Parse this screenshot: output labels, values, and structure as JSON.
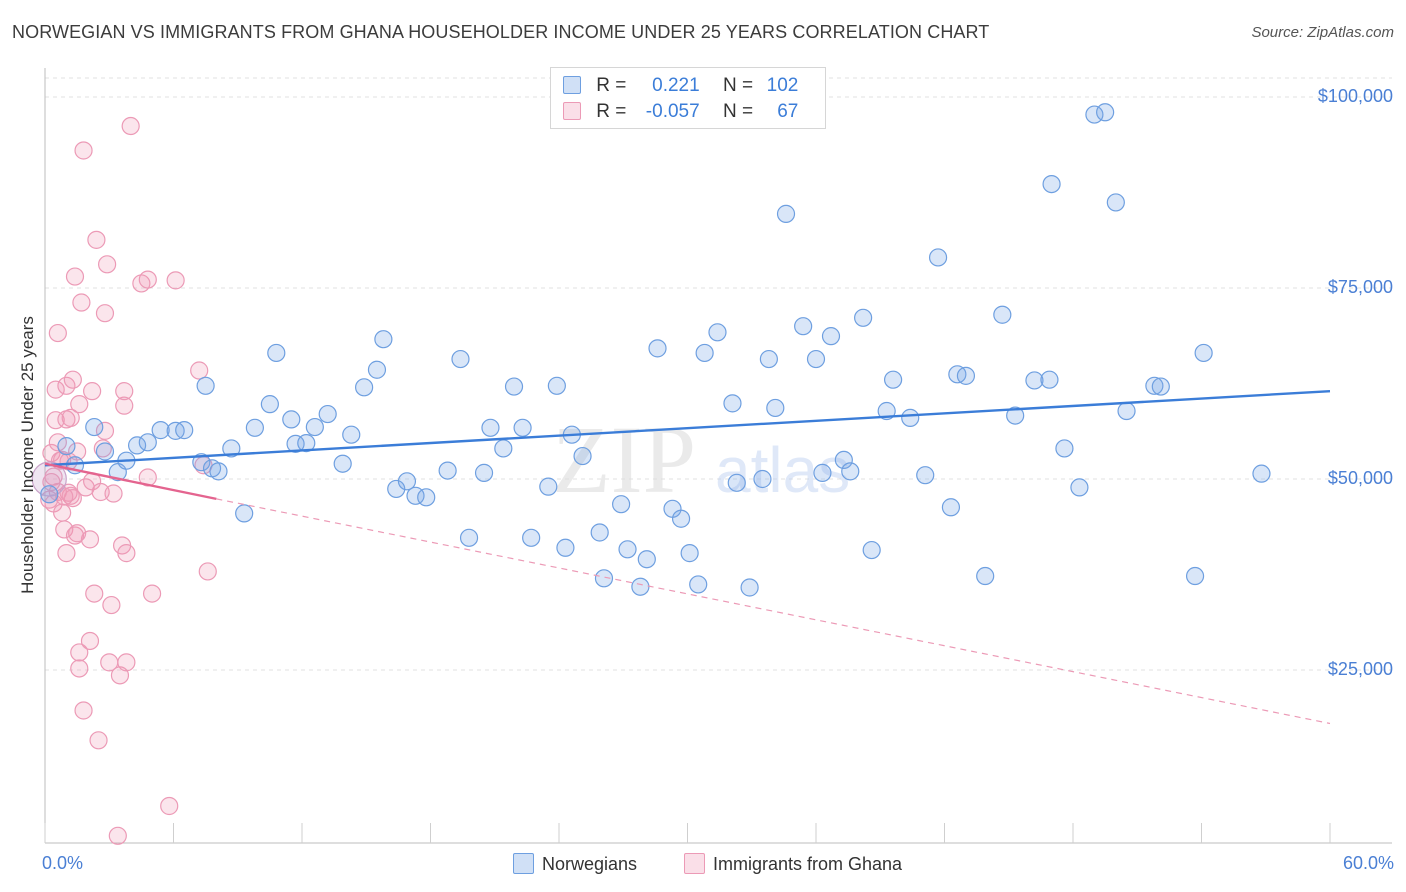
{
  "title": "NORWEGIAN VS IMMIGRANTS FROM GHANA HOUSEHOLDER INCOME UNDER 25 YEARS CORRELATION CHART",
  "source": "Source: ZipAtlas.com",
  "watermark": {
    "zip": "ZIP",
    "atlas": "atlas"
  },
  "colors": {
    "blue": "#3b7dd8",
    "blue_fill": "rgba(120,165,230,0.28)",
    "blue_stroke": "#6e9fe0",
    "pink": "#e4648f",
    "pink_fill": "rgba(240,150,180,0.25)",
    "pink_stroke": "#ec9ab6",
    "grid": "#e2e2e2",
    "axis_text": "#4a7fd4"
  },
  "stats": {
    "r_label": "R =",
    "n_label": "N =",
    "norwegians": {
      "r": "0.221",
      "n": "102"
    },
    "ghana": {
      "r": "-0.057",
      "n": "67"
    }
  },
  "legend": {
    "norwegians": "Norwegians",
    "ghana": "Immigrants from Ghana"
  },
  "chart_data": {
    "type": "scatter",
    "xlabel": "",
    "ylabel": "Householder Income Under 25 years",
    "xlim": [
      0,
      60
    ],
    "ylim": [
      0,
      100000
    ],
    "x_tick_labels": {
      "left": "0.0%",
      "right": "60.0%"
    },
    "y_ticks": [
      {
        "value": 100000,
        "label": "$100,000"
      },
      {
        "value": 75000,
        "label": "$75,000"
      },
      {
        "value": 50000,
        "label": "$50,000"
      },
      {
        "value": 25000,
        "label": "$25,000"
      }
    ],
    "series": [
      {
        "name": "Norwegians",
        "trend": {
          "x": [
            0,
            60
          ],
          "y": [
            51800,
            61500
          ],
          "style": "solid"
        },
        "points": [
          [
            0.2,
            48000
          ],
          [
            1.0,
            54300
          ],
          [
            1.4,
            51800
          ],
          [
            2.3,
            56800
          ],
          [
            2.8,
            53600
          ],
          [
            3.4,
            50900
          ],
          [
            3.8,
            52400
          ],
          [
            4.3,
            54400
          ],
          [
            4.8,
            54800
          ],
          [
            5.4,
            56400
          ],
          [
            6.1,
            56300
          ],
          [
            6.5,
            56400
          ],
          [
            7.3,
            52200
          ],
          [
            7.5,
            62200
          ],
          [
            7.8,
            51400
          ],
          [
            8.1,
            51000
          ],
          [
            8.7,
            54000
          ],
          [
            9.3,
            45500
          ],
          [
            9.8,
            56700
          ],
          [
            10.5,
            59800
          ],
          [
            10.8,
            66500
          ],
          [
            11.5,
            57800
          ],
          [
            11.7,
            54600
          ],
          [
            12.2,
            54700
          ],
          [
            12.6,
            56800
          ],
          [
            13.2,
            58500
          ],
          [
            13.9,
            52000
          ],
          [
            14.3,
            55800
          ],
          [
            14.9,
            62000
          ],
          [
            15.5,
            64300
          ],
          [
            15.8,
            68300
          ],
          [
            16.4,
            48700
          ],
          [
            16.9,
            49700
          ],
          [
            17.3,
            47800
          ],
          [
            17.8,
            47600
          ],
          [
            18.8,
            51100
          ],
          [
            19.4,
            65700
          ],
          [
            19.8,
            42300
          ],
          [
            20.5,
            50800
          ],
          [
            20.8,
            56700
          ],
          [
            21.4,
            54000
          ],
          [
            21.9,
            62100
          ],
          [
            22.3,
            56700
          ],
          [
            22.7,
            42300
          ],
          [
            23.5,
            49000
          ],
          [
            23.9,
            62200
          ],
          [
            24.3,
            41000
          ],
          [
            24.6,
            55800
          ],
          [
            25.1,
            53000
          ],
          [
            25.9,
            43000
          ],
          [
            26.1,
            37000
          ],
          [
            26.9,
            46700
          ],
          [
            27.2,
            40800
          ],
          [
            27.8,
            35900
          ],
          [
            28.1,
            39500
          ],
          [
            28.6,
            67100
          ],
          [
            29.3,
            46100
          ],
          [
            29.7,
            44800
          ],
          [
            30.1,
            40300
          ],
          [
            30.5,
            36200
          ],
          [
            30.8,
            66500
          ],
          [
            31.4,
            69200
          ],
          [
            32.1,
            59900
          ],
          [
            32.3,
            49500
          ],
          [
            32.9,
            35800
          ],
          [
            33.5,
            50000
          ],
          [
            33.8,
            65700
          ],
          [
            34.1,
            59300
          ],
          [
            34.6,
            84700
          ],
          [
            35.4,
            70000
          ],
          [
            36.0,
            65700
          ],
          [
            36.3,
            50800
          ],
          [
            36.7,
            68700
          ],
          [
            37.3,
            52500
          ],
          [
            37.6,
            51000
          ],
          [
            38.2,
            71100
          ],
          [
            38.6,
            40700
          ],
          [
            39.3,
            58900
          ],
          [
            39.6,
            63000
          ],
          [
            40.4,
            58000
          ],
          [
            41.1,
            50500
          ],
          [
            41.7,
            79000
          ],
          [
            42.3,
            46300
          ],
          [
            42.6,
            63700
          ],
          [
            43.0,
            63500
          ],
          [
            43.9,
            37300
          ],
          [
            44.7,
            71500
          ],
          [
            45.3,
            58300
          ],
          [
            46.2,
            62900
          ],
          [
            46.9,
            63000
          ],
          [
            47.6,
            54000
          ],
          [
            48.3,
            48900
          ],
          [
            49.0,
            97700
          ],
          [
            50.0,
            86200
          ],
          [
            50.5,
            58900
          ],
          [
            51.8,
            62200
          ],
          [
            52.1,
            62100
          ],
          [
            53.7,
            37300
          ],
          [
            54.1,
            66500
          ],
          [
            56.8,
            50700
          ],
          [
            47.0,
            88600
          ],
          [
            49.5,
            98000
          ]
        ]
      },
      {
        "name": "Immigrants from Ghana",
        "trend": {
          "x": [
            0,
            8
          ],
          "y": [
            52000,
            47400
          ],
          "dashed_x": [
            8,
            60
          ],
          "dashed_y": [
            47400,
            18000
          ]
        },
        "points": [
          [
            0.2,
            47300
          ],
          [
            0.3,
            53400
          ],
          [
            0.4,
            50300
          ],
          [
            0.4,
            46800
          ],
          [
            0.5,
            57700
          ],
          [
            0.5,
            61700
          ],
          [
            0.6,
            69100
          ],
          [
            0.6,
            48300
          ],
          [
            0.7,
            52400
          ],
          [
            0.8,
            52500
          ],
          [
            0.9,
            43400
          ],
          [
            1.0,
            40300
          ],
          [
            1.0,
            57800
          ],
          [
            1.0,
            62200
          ],
          [
            1.1,
            48200
          ],
          [
            1.2,
            58000
          ],
          [
            1.2,
            47800
          ],
          [
            1.3,
            47500
          ],
          [
            1.3,
            63000
          ],
          [
            1.4,
            76500
          ],
          [
            1.4,
            42600
          ],
          [
            1.5,
            53600
          ],
          [
            1.6,
            59800
          ],
          [
            1.6,
            27300
          ],
          [
            1.6,
            25200
          ],
          [
            1.7,
            73100
          ],
          [
            1.8,
            93000
          ],
          [
            1.8,
            19700
          ],
          [
            1.9,
            48900
          ],
          [
            2.1,
            42100
          ],
          [
            2.1,
            28800
          ],
          [
            2.2,
            49700
          ],
          [
            2.2,
            61500
          ],
          [
            2.3,
            35000
          ],
          [
            2.4,
            81300
          ],
          [
            2.5,
            15800
          ],
          [
            2.7,
            54000
          ],
          [
            2.8,
            56300
          ],
          [
            2.8,
            71700
          ],
          [
            2.9,
            78100
          ],
          [
            3.0,
            26000
          ],
          [
            3.1,
            33500
          ],
          [
            3.4,
            3300
          ],
          [
            3.5,
            24300
          ],
          [
            3.6,
            41300
          ],
          [
            3.7,
            59600
          ],
          [
            3.7,
            61500
          ],
          [
            3.8,
            40300
          ],
          [
            3.8,
            26000
          ],
          [
            4.0,
            96200
          ],
          [
            4.5,
            75600
          ],
          [
            4.8,
            76100
          ],
          [
            4.8,
            50200
          ],
          [
            5.0,
            35000
          ],
          [
            6.1,
            76000
          ],
          [
            7.2,
            64200
          ],
          [
            7.4,
            51800
          ],
          [
            7.6,
            37900
          ],
          [
            5.8,
            7200
          ],
          [
            0.9,
            47700
          ],
          [
            1.1,
            52300
          ],
          [
            0.6,
            54800
          ],
          [
            2.6,
            48300
          ],
          [
            0.3,
            49600
          ],
          [
            1.5,
            42900
          ],
          [
            3.2,
            48100
          ],
          [
            0.8,
            45600
          ]
        ]
      }
    ]
  }
}
